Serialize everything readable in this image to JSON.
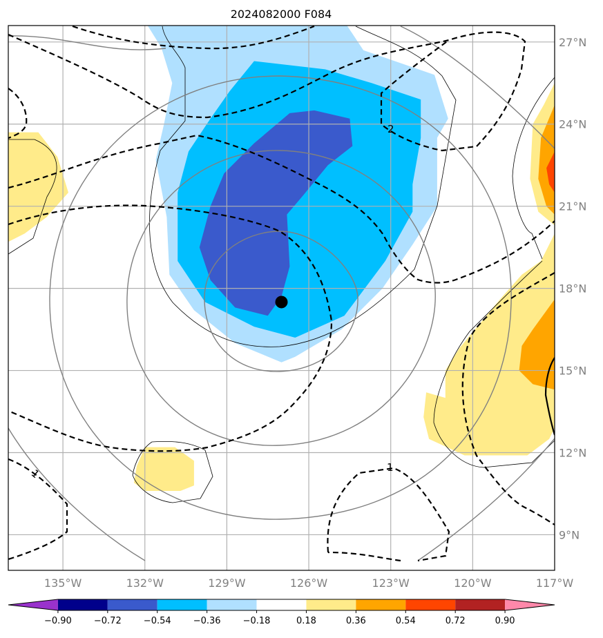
{
  "chart_data": {
    "type": "heatmap",
    "title": "2024082000 F084",
    "map": {
      "lon_range": [
        -137,
        -117
      ],
      "lat_range": [
        7.7,
        27.6
      ],
      "lon_ticks": [
        -135,
        -132,
        -129,
        -126,
        -123,
        -120,
        -117
      ],
      "lon_tick_labels": [
        "135°W",
        "132°W",
        "129°W",
        "126°W",
        "123°W",
        "120°W",
        "117°W"
      ],
      "lat_ticks": [
        9,
        12,
        15,
        18,
        21,
        24,
        27
      ],
      "lat_tick_labels": [
        "9°N",
        "12°N",
        "15°N",
        "18°N",
        "21°N",
        "24°N",
        "27°N"
      ],
      "grid": true
    },
    "center_marker": {
      "lon": -127.0,
      "lat": 17.5
    },
    "colorbar": {
      "levels": [
        "−0.90",
        "−0.72",
        "−0.54",
        "−0.36",
        "−0.18",
        "0.18",
        "0.36",
        "0.54",
        "0.72",
        "0.90"
      ],
      "colors": [
        "#9932cc",
        "#00008b",
        "#3a5acc",
        "#00bfff",
        "#b0e0ff",
        "#ffffff",
        "#ffeb8a",
        "#ffa500",
        "#ff4500",
        "#b22222",
        "#ff88aa"
      ],
      "extend": "both"
    },
    "contour_labels": [
      "2",
      "1",
      "1"
    ],
    "filled_regions": [
      {
        "name": "light-blue",
        "color": "#b0e0ff",
        "lonlat": [
          [
            -131.9,
            27.6
          ],
          [
            -124.6,
            27.6
          ],
          [
            -124.0,
            26.7
          ],
          [
            -121.4,
            25.8
          ],
          [
            -120.9,
            24.2
          ],
          [
            -121.3,
            23.5
          ],
          [
            -121.3,
            21.0
          ],
          [
            -122.2,
            19.6
          ],
          [
            -123.3,
            18.0
          ],
          [
            -124.8,
            16.5
          ],
          [
            -126.5,
            15.5
          ],
          [
            -127.0,
            15.3
          ],
          [
            -128.7,
            16.0
          ],
          [
            -130.2,
            17.2
          ],
          [
            -131.1,
            18.5
          ],
          [
            -131.2,
            20.6
          ],
          [
            -131.6,
            22.7
          ],
          [
            -131.3,
            24.0
          ],
          [
            -131.0,
            25.5
          ],
          [
            -131.4,
            26.8
          ]
        ]
      },
      {
        "name": "blue",
        "color": "#00bfff",
        "lonlat": [
          [
            -128.0,
            26.3
          ],
          [
            -125.4,
            26.0
          ],
          [
            -123.7,
            25.5
          ],
          [
            -121.9,
            24.9
          ],
          [
            -121.9,
            23.5
          ],
          [
            -122.2,
            21.8
          ],
          [
            -122.2,
            20.8
          ],
          [
            -123.2,
            19.0
          ],
          [
            -124.7,
            17.0
          ],
          [
            -126.5,
            16.2
          ],
          [
            -128.0,
            16.6
          ],
          [
            -129.8,
            17.5
          ],
          [
            -130.8,
            19.0
          ],
          [
            -130.8,
            21.5
          ],
          [
            -130.4,
            23.0
          ],
          [
            -129.6,
            24.2
          ],
          [
            -128.9,
            25.2
          ]
        ]
      },
      {
        "name": "royal-blue",
        "color": "#3a5acc",
        "lonlat": [
          [
            -126.7,
            24.4
          ],
          [
            -125.8,
            24.5
          ],
          [
            -124.5,
            24.2
          ],
          [
            -124.4,
            23.2
          ],
          [
            -125.3,
            22.5
          ],
          [
            -126.2,
            21.4
          ],
          [
            -126.8,
            20.7
          ],
          [
            -126.7,
            18.8
          ],
          [
            -127.0,
            17.7
          ],
          [
            -127.5,
            17.0
          ],
          [
            -128.7,
            17.3
          ],
          [
            -129.6,
            18.3
          ],
          [
            -130.0,
            19.5
          ],
          [
            -129.6,
            21.0
          ],
          [
            -129.1,
            22.2
          ],
          [
            -128.0,
            23.3
          ]
        ]
      },
      {
        "name": "yellow-west",
        "color": "#ffeb8a",
        "lonlat": [
          [
            -137.0,
            23.7
          ],
          [
            -135.9,
            23.7
          ],
          [
            -135.2,
            22.8
          ],
          [
            -134.8,
            21.5
          ],
          [
            -135.6,
            20.6
          ],
          [
            -136.4,
            20.0
          ],
          [
            -137.0,
            19.7
          ]
        ]
      },
      {
        "name": "yellow-southwest",
        "color": "#ffeb8a",
        "lonlat": [
          [
            -132.0,
            12.2
          ],
          [
            -130.9,
            12.2
          ],
          [
            -130.2,
            11.7
          ],
          [
            -130.2,
            10.8
          ],
          [
            -130.7,
            10.6
          ],
          [
            -132.0,
            10.6
          ],
          [
            -132.4,
            10.9
          ],
          [
            -132.3,
            11.5
          ]
        ]
      },
      {
        "name": "yellow-east-north",
        "color": "#ffeb8a",
        "lonlat": [
          [
            -117.0,
            25.5
          ],
          [
            -117.4,
            24.7
          ],
          [
            -117.8,
            24.0
          ],
          [
            -117.9,
            22.0
          ],
          [
            -117.6,
            20.8
          ],
          [
            -117.0,
            20.3
          ]
        ]
      },
      {
        "name": "orange-east-north",
        "color": "#ffa500",
        "lonlat": [
          [
            -117.0,
            24.7
          ],
          [
            -117.5,
            23.5
          ],
          [
            -117.6,
            22.0
          ],
          [
            -117.3,
            21.0
          ],
          [
            -117.0,
            20.7
          ]
        ]
      },
      {
        "name": "red-east-north",
        "color": "#ff4500",
        "lonlat": [
          [
            -117.0,
            23.0
          ],
          [
            -117.3,
            22.4
          ],
          [
            -117.2,
            21.8
          ],
          [
            -117.0,
            21.5
          ]
        ]
      },
      {
        "name": "yellow-east-south",
        "color": "#ffeb8a",
        "lonlat": [
          [
            -117.0,
            20.0
          ],
          [
            -117.5,
            19.0
          ],
          [
            -118.2,
            18.5
          ],
          [
            -119.0,
            17.6
          ],
          [
            -120.5,
            15.8
          ],
          [
            -121.0,
            15.0
          ],
          [
            -121.0,
            14.0
          ],
          [
            -121.7,
            14.2
          ],
          [
            -121.8,
            13.3
          ],
          [
            -121.6,
            12.5
          ],
          [
            -120.3,
            11.9
          ],
          [
            -118.0,
            11.9
          ],
          [
            -117.2,
            12.5
          ],
          [
            -117.0,
            12.9
          ]
        ]
      },
      {
        "name": "orange-east-south",
        "color": "#ffa500",
        "lonlat": [
          [
            -117.0,
            17.6
          ],
          [
            -117.8,
            16.5
          ],
          [
            -118.2,
            15.9
          ],
          [
            -118.3,
            15.0
          ],
          [
            -117.8,
            14.5
          ],
          [
            -117.0,
            14.3
          ]
        ]
      }
    ]
  }
}
